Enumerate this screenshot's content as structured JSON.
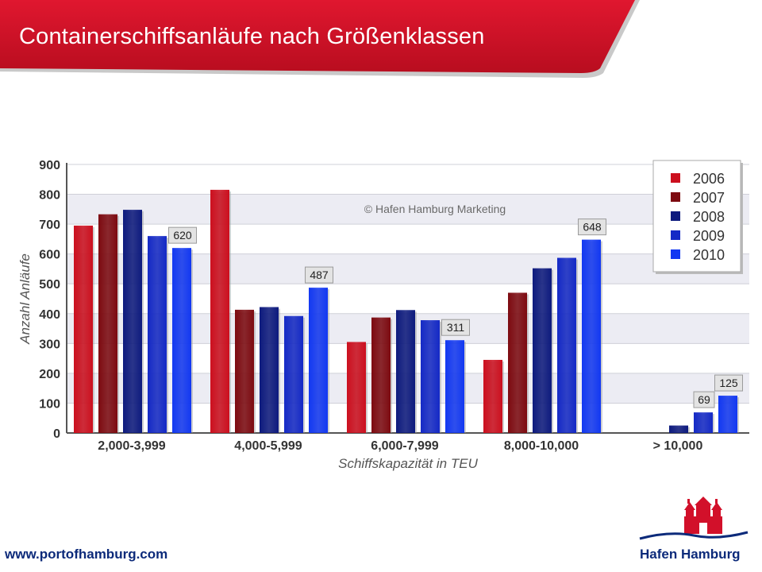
{
  "header": {
    "title": "Containerschiffsanläufe nach Größenklassen"
  },
  "footer": {
    "url": "www.portofhamburg.com",
    "brand": "Hafen Hamburg"
  },
  "colors": {
    "banner": "#d2102a",
    "navy": "#0c2a7a"
  },
  "chart_data": {
    "type": "bar",
    "title": "",
    "xlabel": "Schiffskapazität in TEU",
    "ylabel": "Anzahl Anläufe",
    "watermark": "© Hafen Hamburg Marketing",
    "ylim": [
      0,
      900
    ],
    "yticks": [
      "0",
      "100",
      "200",
      "300",
      "400",
      "500",
      "600",
      "700",
      "800",
      "900"
    ],
    "grid": true,
    "legend_position": "top-right",
    "categories": [
      "2,000-3,999",
      "4,000-5,999",
      "6,000-7,999",
      "8,000-10,000",
      "> 10,000"
    ],
    "series": [
      {
        "name": "2006",
        "color": "#cc0f1e",
        "values": [
          695,
          815,
          305,
          245,
          0
        ]
      },
      {
        "name": "2007",
        "color": "#7d0a10",
        "values": [
          733,
          413,
          387,
          470,
          0
        ]
      },
      {
        "name": "2008",
        "color": "#0d1a7e",
        "values": [
          748,
          422,
          412,
          552,
          25
        ]
      },
      {
        "name": "2009",
        "color": "#1429c6",
        "values": [
          660,
          392,
          378,
          587,
          69
        ]
      },
      {
        "name": "2010",
        "color": "#1238f2",
        "values": [
          620,
          487,
          311,
          648,
          125
        ]
      }
    ],
    "data_labels": [
      {
        "category_index": 0,
        "series_index": 4,
        "text": "620"
      },
      {
        "category_index": 1,
        "series_index": 4,
        "text": "487"
      },
      {
        "category_index": 2,
        "series_index": 4,
        "text": "311"
      },
      {
        "category_index": 3,
        "series_index": 4,
        "text": "648"
      },
      {
        "category_index": 4,
        "series_index": 3,
        "text": "69"
      },
      {
        "category_index": 4,
        "series_index": 4,
        "text": "125"
      }
    ]
  }
}
